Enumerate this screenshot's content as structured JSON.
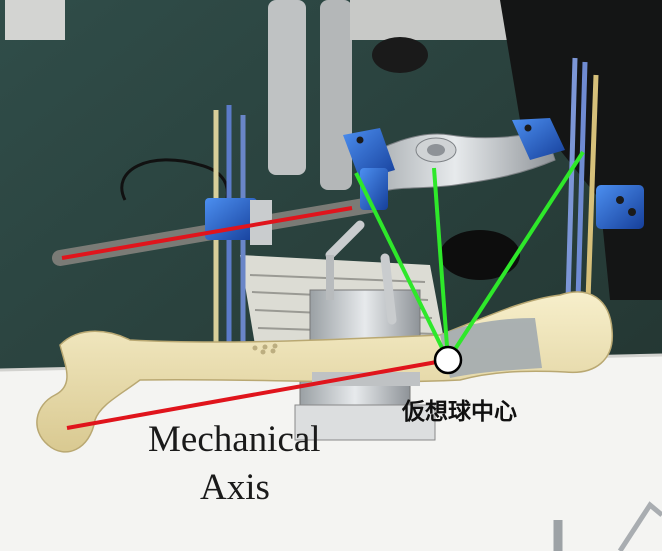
{
  "annotations": {
    "virtual_sphere_center_label": "仮想球中心",
    "axis_label_line1": "Mechanical",
    "axis_label_line2": "Axis"
  },
  "colors": {
    "mechanical_axis_line": "#e0141c",
    "guide_lines": "#2ee82a",
    "sphere_center_marker_fill": "#ffffff",
    "ring_blue": "#1f5fd6",
    "bone": "#efe3b6",
    "carpet": "#2f4a45"
  },
  "scene": {
    "description_icons": [
      "femur-bone",
      "external-fixator-frame",
      "threaded-rods",
      "gray-tape"
    ]
  }
}
